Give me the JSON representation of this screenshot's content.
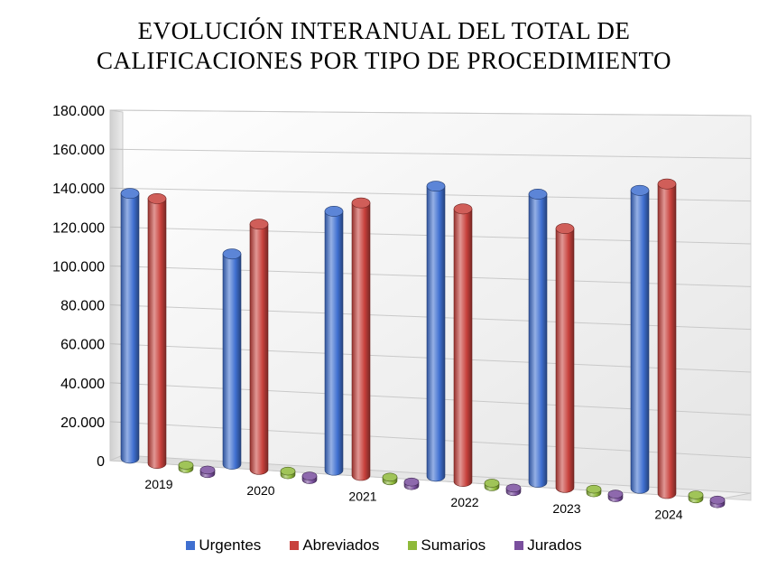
{
  "chart_data": {
    "type": "bar",
    "title_lines": [
      "EVOLUCIÓN INTERANUAL DEL TOTAL DE",
      "CALIFICACIONES POR TIPO DE PROCEDIMIENTO"
    ],
    "categories": [
      "2019",
      "2020",
      "2021",
      "2022",
      "2023",
      "2024"
    ],
    "series": [
      {
        "name": "Urgentes",
        "color": "#3f6fd0",
        "values": [
          136000,
          108000,
          133000,
          149000,
          148000,
          153000
        ]
      },
      {
        "name": "Abreviados",
        "color": "#c8413c",
        "values": [
          136000,
          126000,
          140000,
          140000,
          133000,
          159000
        ]
      },
      {
        "name": "Sumarios",
        "color": "#8fba3a",
        "values": [
          1500,
          1500,
          1600,
          1700,
          1700,
          2000
        ]
      },
      {
        "name": "Jurados",
        "color": "#7a4f9e",
        "values": [
          400,
          400,
          450,
          450,
          450,
          500
        ]
      }
    ],
    "y_ticks": [
      "0",
      "20.000",
      "40.000",
      "60.000",
      "80.000",
      "100.000",
      "120.000",
      "140.000",
      "160.000",
      "180.000"
    ],
    "ylim": [
      0,
      180000
    ],
    "grid": true,
    "legend_position": "bottom"
  }
}
